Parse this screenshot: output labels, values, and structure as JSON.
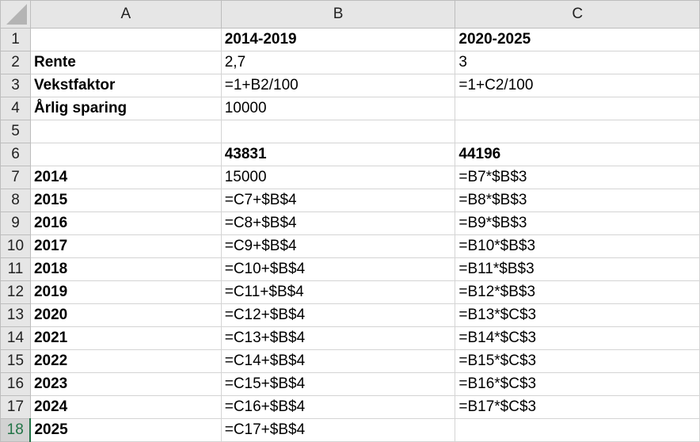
{
  "columns": [
    "A",
    "B",
    "C"
  ],
  "rows": [
    {
      "n": "1",
      "a": "",
      "b": "2014-2019",
      "c": "2020-2025",
      "bold_bc": true
    },
    {
      "n": "2",
      "a": "Rente",
      "b": "2,7",
      "c": "3"
    },
    {
      "n": "3",
      "a": "Vekstfaktor",
      "b": "=1+B2/100",
      "c": "=1+C2/100"
    },
    {
      "n": "4",
      "a": "Årlig sparing",
      "b": "10000",
      "c": ""
    },
    {
      "n": "5",
      "a": "",
      "b": "",
      "c": ""
    },
    {
      "n": "6",
      "a": "",
      "b": "43831",
      "c": "44196",
      "bold_bc": true
    },
    {
      "n": "7",
      "a": "2014",
      "b": "15000",
      "c": "=B7*$B$3"
    },
    {
      "n": "8",
      "a": "2015",
      "b": "=C7+$B$4",
      "c": "=B8*$B$3"
    },
    {
      "n": "9",
      "a": "2016",
      "b": "=C8+$B$4",
      "c": "=B9*$B$3"
    },
    {
      "n": "10",
      "a": "2017",
      "b": "=C9+$B$4",
      "c": "=B10*$B$3"
    },
    {
      "n": "11",
      "a": "2018",
      "b": "=C10+$B$4",
      "c": "=B11*$B$3"
    },
    {
      "n": "12",
      "a": "2019",
      "b": "=C11+$B$4",
      "c": "=B12*$B$3"
    },
    {
      "n": "13",
      "a": "2020",
      "b": "=C12+$B$4",
      "c": "=B13*$C$3"
    },
    {
      "n": "14",
      "a": "2021",
      "b": "=C13+$B$4",
      "c": "=B14*$C$3"
    },
    {
      "n": "15",
      "a": "2022",
      "b": "=C14+$B$4",
      "c": "=B15*$C$3"
    },
    {
      "n": "16",
      "a": "2023",
      "b": "=C15+$B$4",
      "c": "=B16*$C$3"
    },
    {
      "n": "17",
      "a": "2024",
      "b": "=C16+$B$4",
      "c": "=B17*$C$3"
    },
    {
      "n": "18",
      "a": "2025",
      "b": "=C17+$B$4",
      "c": "",
      "selected": true
    }
  ],
  "colors": {
    "selected_accent": "#217346"
  }
}
